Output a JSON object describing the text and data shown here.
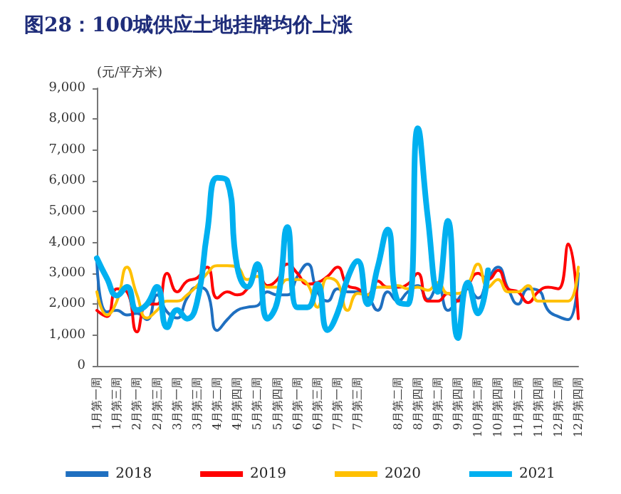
{
  "chart_data": {
    "type": "line",
    "title": "图28：100城供应土地挂牌均价上涨",
    "ylabel": "(元/平方米)",
    "categories": [
      "1月第一周",
      null,
      "1月第三周",
      null,
      "2月第一周",
      null,
      "2月第三周",
      null,
      "3月第一周",
      null,
      "3月第三周",
      null,
      "4月第二周",
      null,
      "4月第四周",
      null,
      "5月第二周",
      null,
      "5月第四周",
      null,
      "6月第一周",
      null,
      "6月第三周",
      null,
      "7月第一周",
      null,
      "7月第三周",
      null,
      null,
      null,
      "8月第二周",
      null,
      "8月第四周",
      null,
      "9月第二周",
      null,
      "9月第四周",
      null,
      "10月第二周",
      null,
      "10月第四周",
      null,
      "11月第二周",
      null,
      "11月第四周",
      null,
      "12月第二周",
      null,
      "12月第四周"
    ],
    "ylim": [
      0,
      9000
    ],
    "yticks": [
      {
        "value": 0,
        "label": "0"
      },
      {
        "value": 1000,
        "label": "1,000"
      },
      {
        "value": 2000,
        "label": "2,000"
      },
      {
        "value": 3000,
        "label": "3,000"
      },
      {
        "value": 4000,
        "label": "4,000"
      },
      {
        "value": 5000,
        "label": "5,000"
      },
      {
        "value": 6000,
        "label": "6,000"
      },
      {
        "value": 7000,
        "label": "7,000"
      },
      {
        "value": 8000,
        "label": "8,000"
      },
      {
        "value": 9000,
        "label": "9,000"
      }
    ],
    "legend": "bottom",
    "marker": "none",
    "line_style": "solid",
    "series": [
      {
        "name": "2018",
        "color": "#1f6fc0",
        "values": [
          3400,
          1750,
          1800,
          1650,
          1700,
          1500,
          2300,
          1750,
          1550,
          2200,
          2550,
          2400,
          1150,
          1500,
          1800,
          1900,
          1950,
          2400,
          2300,
          2300,
          2900,
          3300,
          2400,
          2100,
          2500,
          2400,
          2400,
          2250,
          1800,
          2400,
          2100,
          2400,
          2600,
          2150,
          2600,
          1800,
          2150,
          2500,
          2200,
          2800,
          3200,
          2500,
          2000,
          2500,
          2450,
          1800,
          1600,
          1500,
          3000
        ]
      },
      {
        "name": "2019",
        "color": "#ff0000",
        "values": [
          1800,
          1600,
          2500,
          2400,
          1100,
          2000,
          2000,
          3000,
          2400,
          2750,
          2850,
          3200,
          2200,
          2400,
          2300,
          2500,
          3100,
          2600,
          2800,
          3300,
          3000,
          2650,
          2700,
          2900,
          3200,
          2600,
          2500,
          2300,
          2750,
          2550,
          2550,
          2650,
          3000,
          2100,
          2100,
          2350,
          2100,
          2600,
          3000,
          2800,
          3100,
          2500,
          2400,
          2050,
          2400,
          2550,
          2500,
          3950,
          1530
        ]
      },
      {
        "name": "2020",
        "color": "#ffc000",
        "values": [
          2400,
          1650,
          2100,
          3200,
          2300,
          1550,
          1800,
          2100,
          2100,
          2300,
          2600,
          3000,
          3250,
          3250,
          3200,
          2800,
          2900,
          2550,
          2550,
          2800,
          2800,
          2650,
          1900,
          2850,
          2700,
          1800,
          2350,
          2300,
          2550,
          2550,
          2600,
          2500,
          2550,
          2450,
          2700,
          2350,
          2350,
          2650,
          3300,
          2550,
          2800,
          2400,
          2400,
          2600,
          2100,
          2100,
          2100,
          2100,
          3200
        ]
      },
      {
        "name": "2021",
        "color": "#00b0f0",
        "values": [
          3490,
          2840,
          2280,
          2560,
          1810,
          2000,
          2560,
          1250,
          1810,
          1530,
          2090,
          4330,
          6100,
          6000,
          3200,
          2560,
          3300,
          1530,
          2090,
          4500,
          1900,
          1900,
          2650,
          1160,
          1720,
          2840,
          3400,
          2000,
          3200,
          4420,
          2090,
          2000,
          7700,
          4800,
          2400,
          4700,
          900,
          2700,
          1700,
          3100,
          null,
          null,
          null,
          null,
          null,
          null,
          null,
          null,
          null
        ]
      }
    ]
  }
}
